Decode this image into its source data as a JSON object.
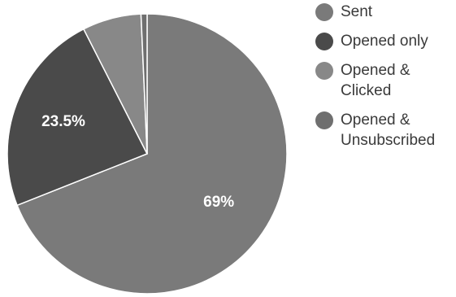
{
  "chart_data": {
    "type": "pie",
    "title": "",
    "slices": [
      {
        "label": "Sent",
        "value": 69,
        "value_label": "69%",
        "color": "#7a7a7a"
      },
      {
        "label": "Opened only",
        "value": 23.5,
        "value_label": "23.5%",
        "color": "#4a4a4a"
      },
      {
        "label": "Opened & Clicked",
        "value": 6.8,
        "value_label": "",
        "color": "#888888"
      },
      {
        "label": "Opened & Unsubscribed",
        "value": 0.7,
        "value_label": "",
        "color": "#6f6f6f"
      }
    ],
    "legend_position": "right"
  }
}
